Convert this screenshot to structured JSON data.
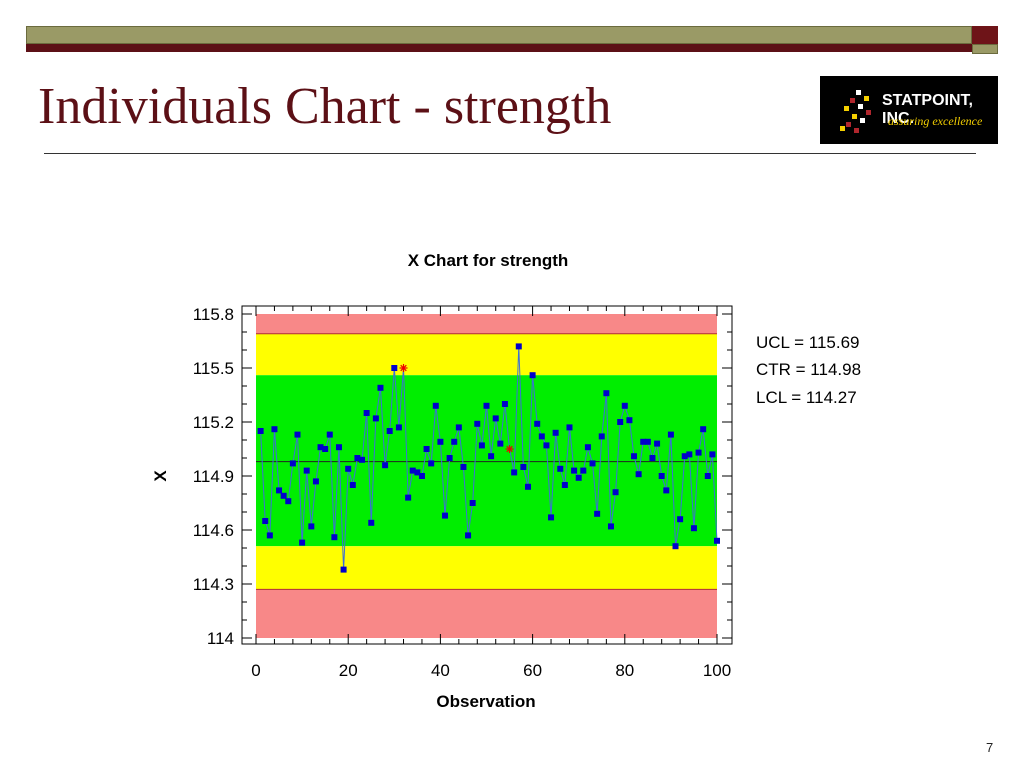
{
  "slide": {
    "title": "Individuals Chart - strength",
    "page_number": "7"
  },
  "logo": {
    "name": "STATPOINT, INC.",
    "tagline": "assuring excellence"
  },
  "colors": {
    "title": "#5c1016",
    "zone_red": "#f88888",
    "zone_yellow": "#ffff00",
    "zone_green": "#00ee00",
    "series_line": "#3c6fd8",
    "series_marker": "#0000cc",
    "out_of_control_marker": "#ee0000"
  },
  "chart_data": {
    "type": "line",
    "title": "X Chart for strength",
    "xlabel": "Observation",
    "ylabel": "X",
    "xlim": [
      0,
      100
    ],
    "ylim": [
      114.0,
      115.8
    ],
    "x_ticks": [
      "0",
      "20",
      "40",
      "60",
      "80",
      "100"
    ],
    "y_ticks": [
      "114",
      "114.3",
      "114.6",
      "114.9",
      "115.2",
      "115.5",
      "115.8"
    ],
    "limits": {
      "ucl": 115.69,
      "ctr": 114.98,
      "lcl": 114.27,
      "ucl_label": "UCL = 115.69",
      "ctr_label": "CTR = 114.98",
      "lcl_label": "LCL = 114.27"
    },
    "zones": [
      {
        "name": "red-upper",
        "from": 115.69,
        "to": 115.8
      },
      {
        "name": "yellow-upper",
        "from": 115.46,
        "to": 115.69
      },
      {
        "name": "green",
        "from": 114.51,
        "to": 115.46
      },
      {
        "name": "yellow-lower",
        "from": 114.27,
        "to": 114.51
      },
      {
        "name": "red-lower",
        "from": 114.0,
        "to": 114.27
      }
    ],
    "series": [
      {
        "values": [
          115.15,
          114.65,
          114.57,
          115.16,
          114.82,
          114.79,
          114.76,
          114.97,
          115.13,
          114.53,
          114.93,
          114.62,
          114.87,
          115.06,
          115.05,
          115.13,
          114.56,
          115.06,
          114.38,
          114.94,
          114.85,
          115.0,
          114.99,
          115.25,
          114.64,
          115.22,
          115.39,
          114.96,
          115.15,
          115.5,
          115.17,
          115.5,
          114.78,
          114.93,
          114.92,
          114.9,
          115.05,
          114.97,
          115.29,
          115.09,
          114.68,
          115.0,
          115.09,
          115.17,
          114.95,
          114.57,
          114.75,
          115.19,
          115.07,
          115.29,
          115.01,
          115.22,
          115.08,
          115.3,
          115.05,
          114.92,
          115.62,
          114.95,
          114.84,
          115.46,
          115.19,
          115.12,
          115.07,
          114.67,
          115.14,
          114.94,
          114.85,
          115.17,
          114.93,
          114.89,
          114.93,
          115.06,
          114.97,
          114.69,
          115.12,
          115.36,
          114.62,
          114.81,
          115.2,
          115.29,
          115.21,
          115.01,
          114.91,
          115.09,
          115.09,
          115.0,
          115.08,
          114.9,
          114.82,
          115.13,
          114.51,
          114.66,
          115.01,
          115.02,
          114.61,
          115.03,
          115.16,
          114.9,
          115.02,
          114.54
        ],
        "out_of_control": [
          {
            "x": 32,
            "y": 115.5
          },
          {
            "x": 55,
            "y": 115.05
          }
        ]
      }
    ]
  }
}
